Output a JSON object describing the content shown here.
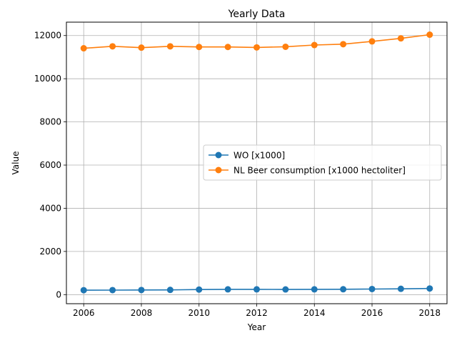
{
  "chart_data": {
    "type": "line",
    "title": "Yearly Data",
    "xlabel": "Year",
    "ylabel": "Value",
    "x": [
      2006,
      2007,
      2008,
      2009,
      2010,
      2011,
      2012,
      2013,
      2014,
      2015,
      2016,
      2017,
      2018
    ],
    "xlim": [
      2005.4,
      2018.6
    ],
    "ylim": [
      -420,
      12620
    ],
    "xticks": [
      2006,
      2008,
      2010,
      2012,
      2014,
      2016,
      2018
    ],
    "yticks": [
      0,
      2000,
      4000,
      6000,
      8000,
      10000,
      12000
    ],
    "grid": true,
    "legend_position": "center-right",
    "series": [
      {
        "name": "WO [x1000]",
        "color": "#1f77b4",
        "values": [
          205,
          210,
          215,
          220,
          235,
          245,
          245,
          240,
          245,
          250,
          260,
          270,
          285
        ]
      },
      {
        "name": "NL Beer consumption [x1000 hectoliter]",
        "color": "#ff7f0e",
        "values": [
          11410,
          11500,
          11440,
          11500,
          11470,
          11470,
          11450,
          11480,
          11560,
          11600,
          11730,
          11870,
          12040
        ]
      }
    ]
  }
}
